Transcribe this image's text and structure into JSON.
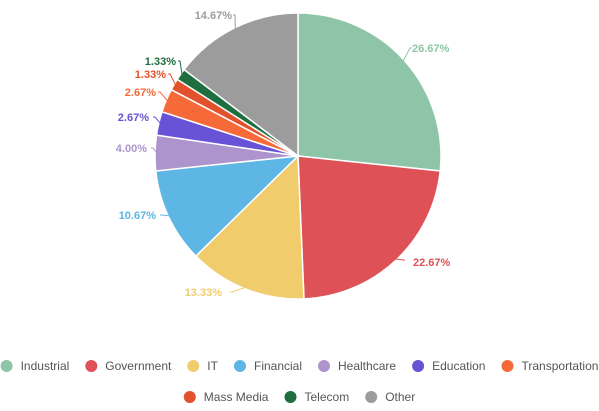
{
  "chart_data": {
    "type": "pie",
    "title": "",
    "legend_position": "bottom",
    "slices": [
      {
        "label": "Industrial",
        "value": 26.67,
        "display": "26.67%",
        "color": "#8ec5a8"
      },
      {
        "label": "Government",
        "value": 22.67,
        "display": "22.67%",
        "color": "#de5157"
      },
      {
        "label": "IT",
        "value": 13.33,
        "display": "13.33%",
        "color": "#f0cc6c"
      },
      {
        "label": "Financial",
        "value": 10.67,
        "display": "10.67%",
        "color": "#5db6e4"
      },
      {
        "label": "Healthcare",
        "value": 4.0,
        "display": "4.00%",
        "color": "#ad94cd"
      },
      {
        "label": "Education",
        "value": 2.67,
        "display": "2.67%",
        "color": "#6852d6"
      },
      {
        "label": "Transportation",
        "value": 2.67,
        "display": "2.67%",
        "color": "#f66939"
      },
      {
        "label": "Mass Media",
        "value": 1.33,
        "display": "1.33%",
        "color": "#e3502c"
      },
      {
        "label": "Telecom",
        "value": 1.33,
        "display": "1.33%",
        "color": "#1f6e3f"
      },
      {
        "label": "Other",
        "value": 14.67,
        "display": "14.67%",
        "color": "#9c9c9c"
      }
    ]
  }
}
